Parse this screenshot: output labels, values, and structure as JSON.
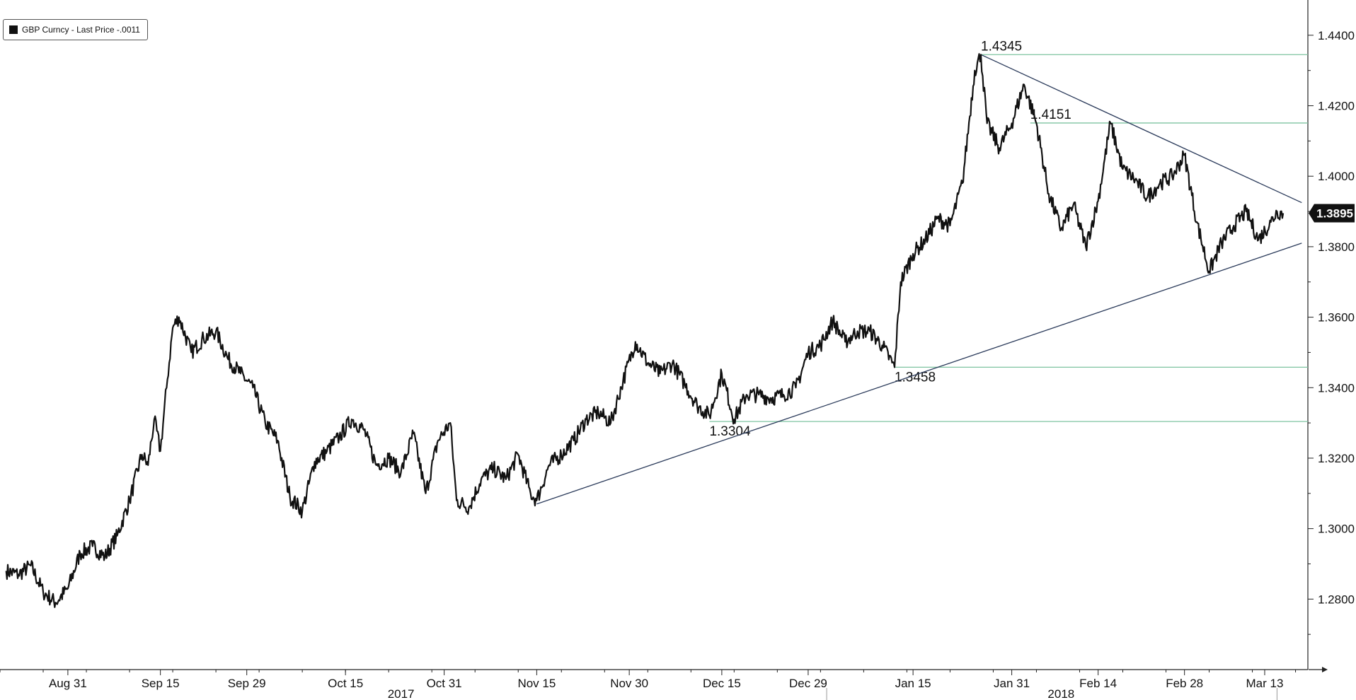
{
  "legend": {
    "label": "GBP Curncy - Last Price -.0011"
  },
  "chart_data": {
    "type": "line",
    "title": "",
    "xlabel": "",
    "ylabel": "",
    "ylim": [
      1.26,
      1.45
    ],
    "yticks": [
      "1.2800",
      "1.3000",
      "1.3200",
      "1.3400",
      "1.3600",
      "1.3800",
      "1.4000",
      "1.4200",
      "1.4400"
    ],
    "xticks": [
      {
        "label": "Aug 31",
        "date": "2017-08-31"
      },
      {
        "label": "Sep 15",
        "date": "2017-09-15"
      },
      {
        "label": "Sep 29",
        "date": "2017-09-29"
      },
      {
        "label": "Oct 15",
        "date": "2017-10-15"
      },
      {
        "label": "Oct 31",
        "date": "2017-10-31"
      },
      {
        "label": "Nov 15",
        "date": "2017-11-15"
      },
      {
        "label": "Nov 30",
        "date": "2017-11-30"
      },
      {
        "label": "Dec 15",
        "date": "2017-12-15"
      },
      {
        "label": "Dec 29",
        "date": "2017-12-29"
      },
      {
        "label": "Jan 15",
        "date": "2018-01-15"
      },
      {
        "label": "Jan 31",
        "date": "2018-01-31"
      },
      {
        "label": "Feb 14",
        "date": "2018-02-14"
      },
      {
        "label": "Feb 28",
        "date": "2018-02-28"
      },
      {
        "label": "Mar 13",
        "date": "2018-03-13"
      }
    ],
    "years": [
      {
        "label": "2017",
        "date": "2017-10-24"
      },
      {
        "label": "2018",
        "date": "2018-02-08"
      }
    ],
    "year_separator_date": "2018-01-01",
    "series": [
      {
        "color": "#111111",
        "points": [
          [
            "2017-08-21",
            1.288
          ],
          [
            "2017-08-23",
            1.287
          ],
          [
            "2017-08-25",
            1.2895
          ],
          [
            "2017-08-27",
            1.282
          ],
          [
            "2017-08-29",
            1.279
          ],
          [
            "2017-08-31",
            1.283
          ],
          [
            "2017-09-02",
            1.293
          ],
          [
            "2017-09-04",
            1.295
          ],
          [
            "2017-09-06",
            1.292
          ],
          [
            "2017-09-08",
            1.298
          ],
          [
            "2017-09-10",
            1.308
          ],
          [
            "2017-09-12",
            1.321
          ],
          [
            "2017-09-13",
            1.318
          ],
          [
            "2017-09-14",
            1.331
          ],
          [
            "2017-09-15",
            1.322
          ],
          [
            "2017-09-16",
            1.34
          ],
          [
            "2017-09-17",
            1.357
          ],
          [
            "2017-09-18",
            1.36
          ],
          [
            "2017-09-20",
            1.35
          ],
          [
            "2017-09-22",
            1.354
          ],
          [
            "2017-09-24",
            1.356
          ],
          [
            "2017-09-26",
            1.348
          ],
          [
            "2017-09-28",
            1.344
          ],
          [
            "2017-09-30",
            1.34
          ],
          [
            "2017-10-02",
            1.33
          ],
          [
            "2017-10-04",
            1.325
          ],
          [
            "2017-10-06",
            1.309
          ],
          [
            "2017-10-08",
            1.305
          ],
          [
            "2017-10-10",
            1.319
          ],
          [
            "2017-10-12",
            1.322
          ],
          [
            "2017-10-14",
            1.326
          ],
          [
            "2017-10-16",
            1.331
          ],
          [
            "2017-10-18",
            1.328
          ],
          [
            "2017-10-20",
            1.318
          ],
          [
            "2017-10-22",
            1.32
          ],
          [
            "2017-10-24",
            1.316
          ],
          [
            "2017-10-26",
            1.327
          ],
          [
            "2017-10-28",
            1.31
          ],
          [
            "2017-10-30",
            1.325
          ],
          [
            "2017-11-01",
            1.33
          ],
          [
            "2017-11-02",
            1.308
          ],
          [
            "2017-11-04",
            1.306
          ],
          [
            "2017-11-06",
            1.314
          ],
          [
            "2017-11-08",
            1.317
          ],
          [
            "2017-11-10",
            1.314
          ],
          [
            "2017-11-12",
            1.321
          ],
          [
            "2017-11-14",
            1.31
          ],
          [
            "2017-11-15",
            1.308
          ],
          [
            "2017-11-17",
            1.318
          ],
          [
            "2017-11-19",
            1.321
          ],
          [
            "2017-11-21",
            1.325
          ],
          [
            "2017-11-23",
            1.331
          ],
          [
            "2017-11-25",
            1.333
          ],
          [
            "2017-11-27",
            1.33
          ],
          [
            "2017-11-29",
            1.342
          ],
          [
            "2017-12-01",
            1.353
          ],
          [
            "2017-12-03",
            1.347
          ],
          [
            "2017-12-05",
            1.344
          ],
          [
            "2017-12-07",
            1.347
          ],
          [
            "2017-12-09",
            1.341
          ],
          [
            "2017-12-11",
            1.335
          ],
          [
            "2017-12-13",
            1.332
          ],
          [
            "2017-12-15",
            1.344
          ],
          [
            "2017-12-17",
            1.331
          ],
          [
            "2017-12-19",
            1.338
          ],
          [
            "2017-12-21",
            1.338
          ],
          [
            "2017-12-23",
            1.337
          ],
          [
            "2017-12-25",
            1.338
          ],
          [
            "2017-12-27",
            1.34
          ],
          [
            "2017-12-29",
            1.35
          ],
          [
            "2017-12-31",
            1.352
          ],
          [
            "2018-01-02",
            1.359
          ],
          [
            "2018-01-04",
            1.353
          ],
          [
            "2018-01-06",
            1.356
          ],
          [
            "2018-01-08",
            1.356
          ],
          [
            "2018-01-10",
            1.352
          ],
          [
            "2018-01-12",
            1.3458
          ],
          [
            "2018-01-13",
            1.37
          ],
          [
            "2018-01-15",
            1.378
          ],
          [
            "2018-01-17",
            1.382
          ],
          [
            "2018-01-19",
            1.388
          ],
          [
            "2018-01-21",
            1.386
          ],
          [
            "2018-01-23",
            1.398
          ],
          [
            "2018-01-25",
            1.43
          ],
          [
            "2018-01-26",
            1.4345
          ],
          [
            "2018-01-27",
            1.415
          ],
          [
            "2018-01-29",
            1.408
          ],
          [
            "2018-01-31",
            1.415
          ],
          [
            "2018-02-02",
            1.426
          ],
          [
            "2018-02-04",
            1.415
          ],
          [
            "2018-02-06",
            1.395
          ],
          [
            "2018-02-08",
            1.385
          ],
          [
            "2018-02-10",
            1.392
          ],
          [
            "2018-02-12",
            1.38
          ],
          [
            "2018-02-14",
            1.393
          ],
          [
            "2018-02-16",
            1.4151
          ],
          [
            "2018-02-18",
            1.402
          ],
          [
            "2018-02-20",
            1.399
          ],
          [
            "2018-02-22",
            1.394
          ],
          [
            "2018-02-24",
            1.398
          ],
          [
            "2018-02-26",
            1.4
          ],
          [
            "2018-02-28",
            1.406
          ],
          [
            "2018-03-02",
            1.387
          ],
          [
            "2018-03-04",
            1.373
          ],
          [
            "2018-03-06",
            1.381
          ],
          [
            "2018-03-08",
            1.386
          ],
          [
            "2018-03-10",
            1.39
          ],
          [
            "2018-03-12",
            1.382
          ],
          [
            "2018-03-14",
            1.387
          ],
          [
            "2018-03-15",
            1.39
          ],
          [
            "2018-03-16",
            1.3895
          ]
        ]
      }
    ],
    "last_price": "1.3895",
    "trendlines": [
      {
        "from": [
          "2017-11-15",
          1.307
        ],
        "to": [
          "2018-03-19",
          1.381
        ]
      },
      {
        "from": [
          "2018-01-26",
          1.4345
        ],
        "to": [
          "2018-03-19",
          1.3925
        ]
      }
    ],
    "levels": [
      {
        "value": 1.4345,
        "label": "1.4345",
        "from": "2018-01-26"
      },
      {
        "value": 1.4151,
        "label": "1.4151",
        "from": "2018-02-03"
      },
      {
        "value": 1.3458,
        "label": "1.3458",
        "from": "2018-01-12"
      },
      {
        "value": 1.3304,
        "label": "1.3304",
        "from": "2017-12-13"
      }
    ],
    "grid": false,
    "legend_position": "top-left",
    "colors": {
      "line": "#111111",
      "levels": "#7fc4a0",
      "trend": "#2a3a5a"
    }
  }
}
